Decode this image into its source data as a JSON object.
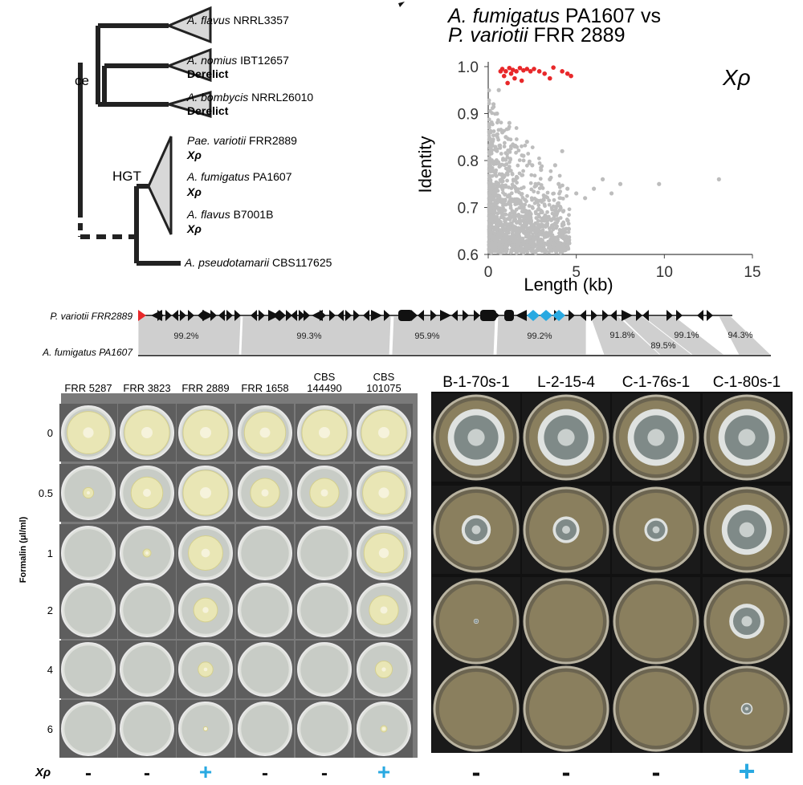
{
  "tree": {
    "taxa": [
      {
        "italic": "A. flavus",
        "rest": "NRRL3357",
        "tag": ""
      },
      {
        "italic": "A. nomius",
        "rest": "IBT12657",
        "tag": "Derelict"
      },
      {
        "italic": "A. bombycis",
        "rest": "NRRL26010",
        "tag": "Derelict"
      },
      {
        "italic": "Pae. variotii",
        "rest": "FRR2889",
        "tag": "Xρ"
      },
      {
        "italic": "A. fumigatus",
        "rest": "PA1607",
        "tag": "Xρ"
      },
      {
        "italic": "A. flavus",
        "rest": "B7001B",
        "tag": "Xρ"
      },
      {
        "italic": "A. pseudotamarii",
        "rest": "CBS117625",
        "tag": ""
      }
    ],
    "hgt_label": "HGT",
    "cut_label": "ce"
  },
  "scatter": {
    "title_line1_italic": "A. fumigatus",
    "title_line1_rest": " PA1607 vs",
    "title_line2_italic": "P. variotii",
    "title_line2_rest": " FRR 2889",
    "xlabel": "Length (kb)",
    "ylabel": "Identity",
    "annotation": "Xρ",
    "xticks": [
      "0",
      "5",
      "10",
      "15"
    ],
    "yticks": [
      "1.0",
      "0.9",
      "0.8",
      "0.7",
      "0.6"
    ]
  },
  "chart_data": {
    "type": "scatter",
    "title": "A. fumigatus PA1607 vs P. variotii FRR 2889",
    "xlabel": "Length (kb)",
    "ylabel": "Identity",
    "xlim": [
      0,
      15
    ],
    "ylim": [
      0.6,
      1.0
    ],
    "series": [
      {
        "name": "",
        "color": "#e8282a",
        "points": [
          [
            0.8,
            0.995
          ],
          [
            1.0,
            0.99
          ],
          [
            1.2,
            0.997
          ],
          [
            1.4,
            0.993
          ],
          [
            1.6,
            0.99
          ],
          [
            1.8,
            0.997
          ],
          [
            2.0,
            0.992
          ],
          [
            2.2,
            0.995
          ],
          [
            0.9,
            0.98
          ],
          [
            1.3,
            0.985
          ],
          [
            1.5,
            0.975
          ],
          [
            2.4,
            0.99
          ],
          [
            2.6,
            0.995
          ],
          [
            1.1,
            0.965
          ],
          [
            1.9,
            0.97
          ],
          [
            3.5,
            0.975
          ],
          [
            3.7,
            0.998
          ],
          [
            4.2,
            0.99
          ],
          [
            4.5,
            0.985
          ],
          [
            4.7,
            0.98
          ],
          [
            3.2,
            0.985
          ],
          [
            0.7,
            0.99
          ],
          [
            2.9,
            0.99
          ]
        ]
      },
      {
        "name": "",
        "color": "#bdbdbd",
        "points": [
          [
            0.3,
            0.92
          ],
          [
            0.5,
            0.9
          ],
          [
            0.8,
            0.86
          ],
          [
            1.0,
            0.85
          ],
          [
            1.5,
            0.83
          ],
          [
            2.0,
            0.81
          ],
          [
            2.5,
            0.79
          ],
          [
            3.0,
            0.78
          ],
          [
            3.5,
            0.76
          ],
          [
            4.0,
            0.75
          ],
          [
            4.5,
            0.74
          ],
          [
            5.0,
            0.73
          ],
          [
            5.5,
            0.72
          ],
          [
            6.0,
            0.74
          ],
          [
            6.5,
            0.76
          ],
          [
            7.0,
            0.73
          ],
          [
            7.5,
            0.75
          ],
          [
            9.7,
            0.75
          ],
          [
            13.1,
            0.76
          ],
          [
            4.2,
            0.82
          ],
          [
            3.8,
            0.79
          ],
          [
            2.2,
            0.84
          ],
          [
            1.2,
            0.88
          ],
          [
            0.6,
            0.95
          ]
        ]
      }
    ]
  },
  "synteny": {
    "top_label": "P. variotii FRR2889",
    "bottom_label": "A. fumigatus  PA1607",
    "percents": [
      "99.2%",
      "99.3%",
      "95.9%",
      "99.2%",
      "91.8%",
      "89.5%",
      "99.1%",
      "94.3%"
    ]
  },
  "plates_left": {
    "columns": [
      "FRR 5287",
      "FRR 3823",
      "FRR 2889",
      "FRR 1658",
      "CBS\n144490",
      "CBS\n101075"
    ],
    "col_line1": [
      "FRR 5287",
      "FRR 3823",
      "FRR 2889",
      "FRR 1658",
      "CBS",
      "CBS"
    ],
    "col_line2": [
      "",
      "",
      "",
      "",
      "144490",
      "101075"
    ],
    "rows": [
      "0",
      "0.5",
      "1",
      "2",
      "4",
      "6"
    ],
    "yaxis": "Formalin (μl/ml)",
    "signs": [
      "-",
      "-",
      "+",
      "-",
      "-",
      "+"
    ]
  },
  "plates_right": {
    "columns": [
      "B-1-70s-1",
      "L-2-15-4",
      "C-1-76s-1",
      "C-1-80s-1"
    ],
    "signs": [
      "-",
      "-",
      "-",
      "+"
    ]
  },
  "xp_label": "Xρ",
  "colors": {
    "red": "#e8282a",
    "blue": "#29a9e1",
    "grey": "#bdbdbd",
    "gene": "#111111"
  }
}
